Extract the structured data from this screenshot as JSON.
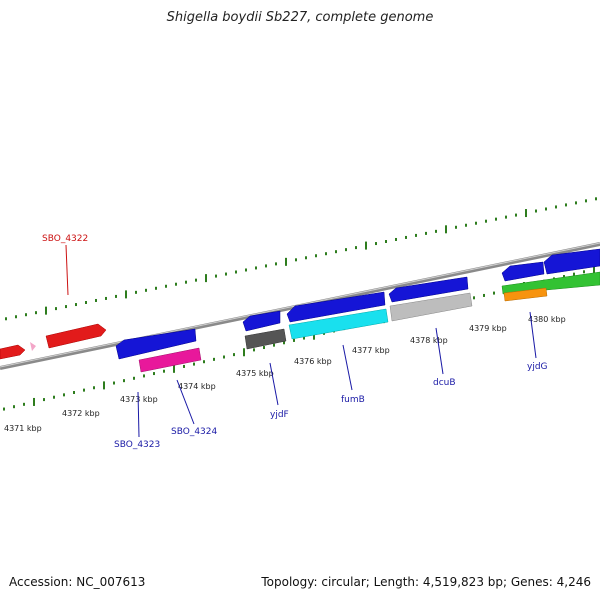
{
  "title": "Shigella boydii Sb227, complete genome",
  "footer": {
    "accession": "Accession: NC_007613",
    "summary": "Topology: circular; Length: 4,519,823 bp; Genes: 4,246"
  },
  "colors": {
    "backbone": "#8a8a8a",
    "tick_green": "#2e7d1e",
    "label_blue": "#1a1aa6",
    "label_red": "#cc1111"
  },
  "scale_labels": [
    "4371 kbp",
    "4372 kbp",
    "4373 kbp",
    "4374 kbp",
    "4375 kbp",
    "4376 kbp",
    "4377 kbp",
    "4378 kbp",
    "4379 kbp",
    "4380 kbp"
  ],
  "gene_labels": [
    {
      "text": "SBO_4322",
      "color": "#cc1111"
    },
    {
      "text": "SBO_4323",
      "color": "#1a1aa6"
    },
    {
      "text": "SBO_4324",
      "color": "#1a1aa6"
    },
    {
      "text": "yjdF",
      "color": "#1a1aa6"
    },
    {
      "text": "fumB",
      "color": "#1a1aa6"
    },
    {
      "text": "dcuB",
      "color": "#1a1aa6"
    },
    {
      "text": "yjdG",
      "color": "#1a1aa6"
    }
  ]
}
